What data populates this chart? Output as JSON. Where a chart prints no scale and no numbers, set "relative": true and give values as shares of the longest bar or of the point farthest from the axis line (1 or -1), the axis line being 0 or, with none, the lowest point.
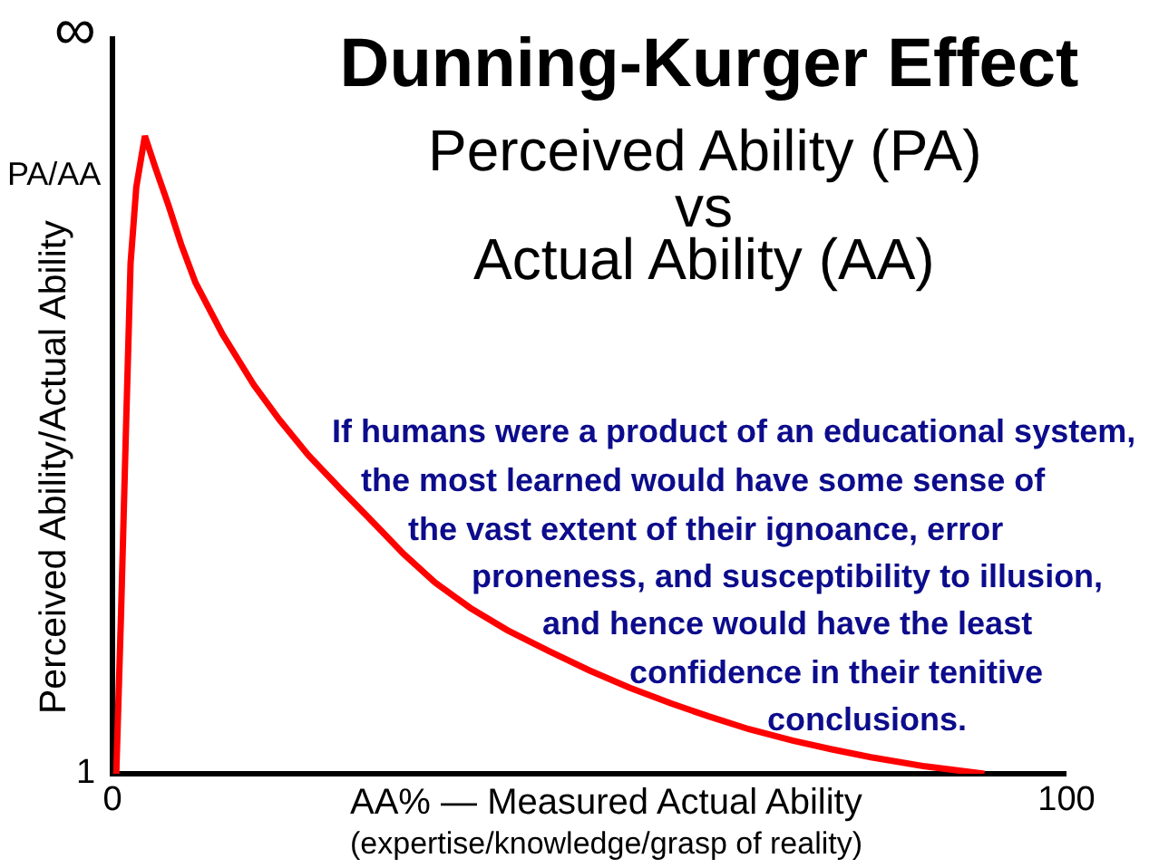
{
  "chart_data": {
    "type": "line",
    "title": "Dunning-Kurger Effect",
    "subtitle": "Perceived Ability (PA)\nvs\nActual Ability (AA)",
    "xlabel": "AA% — Measured Actual Ability\n(expertise/knowledge/grasp of reality)",
    "ylabel": "Perceived Ability/Actual Ability",
    "annotations": [
      "∞",
      "PA/AA",
      "1",
      "If humans were a product of an educational system,\nthe most learned would have some sense of\nthe vast extent of their ignoance, error\nproneness, and susceptibility to illusion,\nand hence would have the least\nconfidence in their tenitive\nconclusions."
    ],
    "relative": true,
    "x": [
      0.4,
      0.9,
      1.4,
      1.9,
      2.5,
      3.4,
      4.5,
      5.9,
      7.2,
      8.7,
      11.5,
      14.8,
      17.5,
      20.5,
      24,
      27.6,
      30.5,
      33.8,
      37.5,
      41.4,
      45.8,
      50,
      54.2,
      58.6,
      62.5,
      66.7,
      71.3,
      75.5,
      79.5,
      85,
      91.4
    ],
    "series": [
      {
        "color": "#ff0000",
        "values": [
          0,
          0.25,
          0.53,
          0.8,
          0.92,
          1,
          0.95,
          0.89,
          0.83,
          0.77,
          0.69,
          0.61,
          0.555,
          0.5,
          0.445,
          0.39,
          0.345,
          0.3,
          0.26,
          0.225,
          0.192,
          0.162,
          0.135,
          0.11,
          0.09,
          0.07,
          0.052,
          0.038,
          0.026,
          0.012,
          0
        ]
      }
    ],
    "xlim": [
      0,
      100
    ],
    "xticks": [
      0,
      100
    ]
  }
}
